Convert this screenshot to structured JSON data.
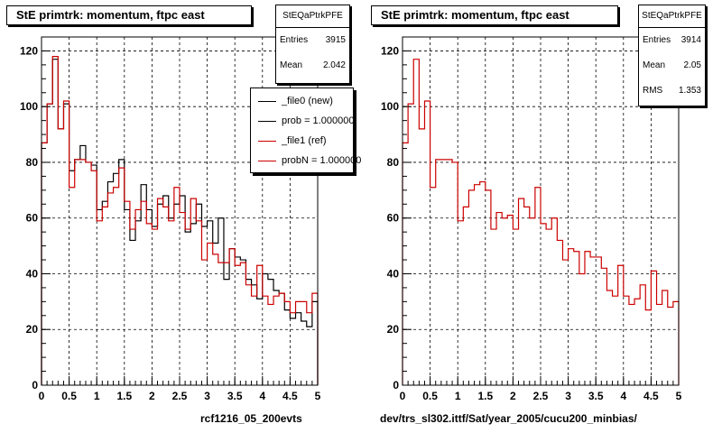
{
  "footer_stamp": "",
  "chart_data": [
    {
      "type": "histogram",
      "title": "StE primtrk: momentum, ftpc east",
      "xlabel": "rcf1216_05_200evts",
      "xlim": [
        0,
        5
      ],
      "ylim": [
        0,
        125
      ],
      "xticks": [
        "0",
        "0.5",
        "1",
        "1.5",
        "2",
        "2.5",
        "3",
        "3.5",
        "4",
        "4.5",
        "5"
      ],
      "yticks": [
        "0",
        "20",
        "40",
        "60",
        "80",
        "100",
        "120"
      ],
      "grid": true,
      "bin_width": 0.1,
      "stats": {
        "name": "StEQaPtrkPFE",
        "rows": [
          {
            "label": "Entries",
            "value": "3915"
          },
          {
            "label": "Mean",
            "value": "2.042"
          }
        ]
      },
      "legend_position": "top-right",
      "legend": [
        {
          "label": "_file0 (new)",
          "color": "#000000"
        },
        {
          "label": "prob = 1.000000",
          "color": "#000000"
        },
        {
          "label": "_file1 (ref)",
          "color": "#cc0000"
        },
        {
          "label": "probN = 1.000000",
          "color": "#cc0000"
        }
      ],
      "series": [
        {
          "color": "#000000",
          "values": [
            87,
            101,
            117,
            92,
            101,
            77,
            81,
            86,
            80,
            79,
            63,
            66,
            73,
            76,
            81,
            63,
            52,
            59,
            72,
            63,
            57,
            65,
            68,
            60,
            65,
            68,
            55,
            58,
            65,
            57,
            59,
            51,
            60,
            38,
            49,
            46,
            45,
            38,
            36,
            31,
            40,
            38,
            34,
            33,
            27,
            24,
            26,
            23,
            21,
            30
          ]
        },
        {
          "color": "#cc0000",
          "values": [
            87,
            101,
            118,
            92,
            102,
            71,
            81,
            81,
            80,
            77,
            59,
            64,
            69,
            71,
            78,
            66,
            56,
            63,
            66,
            58,
            56,
            67,
            64,
            59,
            71,
            62,
            56,
            67,
            59,
            45,
            51,
            47,
            44,
            44,
            49,
            43,
            44,
            36,
            32,
            43,
            32,
            29,
            32,
            33,
            30,
            26,
            30,
            30,
            26,
            33
          ]
        }
      ]
    },
    {
      "type": "histogram",
      "title": "StE primtrk: momentum, ftpc east",
      "xlabel": "dev/trs_sl302.ittf/Sat/year_2005/cucu200_minbias/",
      "xlim": [
        0,
        5
      ],
      "ylim": [
        0,
        125
      ],
      "xticks": [
        "0",
        "0.5",
        "1",
        "1.5",
        "2",
        "2.5",
        "3",
        "3.5",
        "4",
        "4.5",
        "5"
      ],
      "yticks": [
        "0",
        "20",
        "40",
        "60",
        "80",
        "100",
        "120"
      ],
      "grid": true,
      "bin_width": 0.1,
      "stats": {
        "name": "StEQaPtrkPFE",
        "rows": [
          {
            "label": "Entries",
            "value": "3914"
          },
          {
            "label": "Mean",
            "value": "2.05"
          },
          {
            "label": "RMS",
            "value": "1.353"
          }
        ]
      },
      "series": [
        {
          "color": "#cc0000",
          "values": [
            87,
            101,
            117,
            92,
            102,
            71,
            81,
            81,
            81,
            80,
            59,
            64,
            70,
            72,
            73,
            70,
            56,
            62,
            60,
            61,
            56,
            67,
            64,
            60,
            71,
            58,
            56,
            60,
            52,
            45,
            49,
            48,
            40,
            48,
            46,
            46,
            42,
            34,
            32,
            43,
            32,
            29,
            31,
            36,
            27,
            41,
            29,
            34,
            28,
            30
          ]
        }
      ]
    }
  ]
}
